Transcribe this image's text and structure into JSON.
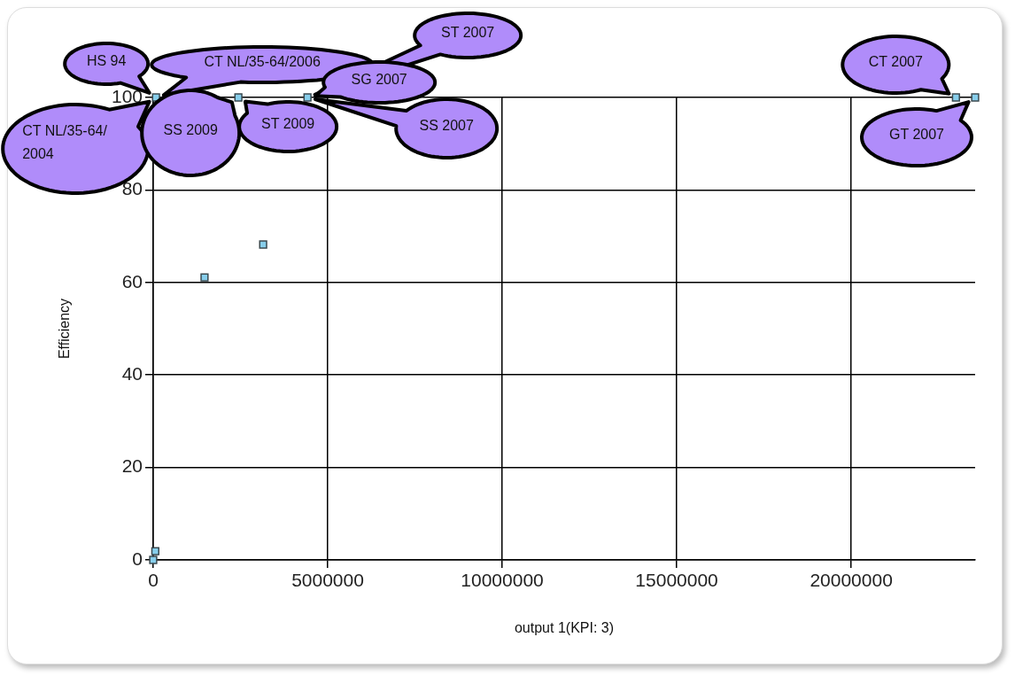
{
  "chart_data": {
    "type": "scatter",
    "xlabel": "output 1(KPI: 3)",
    "ylabel": "Efficiency",
    "x": [
      0,
      60000,
      80000,
      1470000,
      2440000,
      3150000,
      4420000,
      23000000,
      23550000
    ],
    "series": [
      {
        "color": "#87ceeb",
        "values": [
          0,
          1.9,
          100,
          61.1,
          100,
          68.2,
          100,
          100,
          100
        ]
      }
    ],
    "xlim": [
      0,
      23550000
    ],
    "xticks": [
      0,
      5000000,
      10000000,
      15000000,
      20000000
    ],
    "ylim": [
      0,
      100
    ],
    "yticks": [
      0,
      20,
      40,
      60,
      80,
      100
    ],
    "grid": true,
    "legend": false,
    "marker": "square",
    "annotations": [
      "HS 94",
      "CT NL/35-64/2006",
      "CT NL/35-64/2004",
      "SS 2009",
      "ST 2009",
      "SG 2007",
      "ST 2007",
      "SS 2007",
      "CT 2007",
      "GT 2007"
    ]
  }
}
